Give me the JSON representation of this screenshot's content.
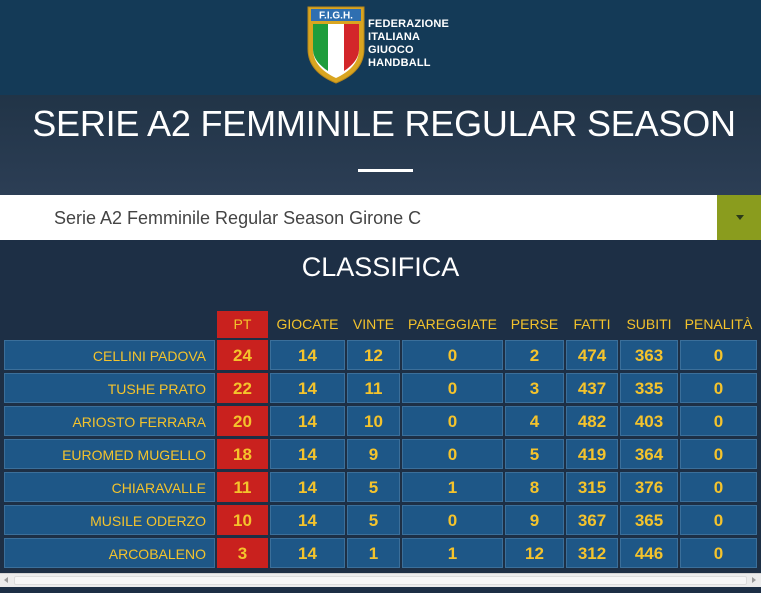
{
  "header": {
    "logo_abbr": "F.I.G.H.",
    "logo_lines": [
      "FEDERAZIONE",
      "ITALIANA",
      "GIUOCO",
      "HANDBALL"
    ]
  },
  "page_title": "SERIE A2 FEMMINILE REGULAR SEASON",
  "dropdown": {
    "selected": "Serie A2 Femminile Regular Season Girone C"
  },
  "section_title": "CLASSIFICA",
  "table": {
    "columns": [
      "PT",
      "GIOCATE",
      "VINTE",
      "PAREGGIATE",
      "PERSE",
      "FATTI",
      "SUBITI",
      "PENALITÀ"
    ],
    "rows": [
      {
        "team": "CELLINI PADOVA",
        "values": [
          "24",
          "14",
          "12",
          "0",
          "2",
          "474",
          "363",
          "0"
        ]
      },
      {
        "team": "TUSHE PRATO",
        "values": [
          "22",
          "14",
          "11",
          "0",
          "3",
          "437",
          "335",
          "0"
        ]
      },
      {
        "team": "ARIOSTO FERRARA",
        "values": [
          "20",
          "14",
          "10",
          "0",
          "4",
          "482",
          "403",
          "0"
        ]
      },
      {
        "team": "EUROMED MUGELLO",
        "values": [
          "18",
          "14",
          "9",
          "0",
          "5",
          "419",
          "364",
          "0"
        ]
      },
      {
        "team": "CHIARAVALLE",
        "values": [
          "11",
          "14",
          "5",
          "1",
          "8",
          "315",
          "376",
          "0"
        ]
      },
      {
        "team": "MUSILE ODERZO",
        "values": [
          "10",
          "14",
          "5",
          "0",
          "9",
          "367",
          "365",
          "0"
        ]
      },
      {
        "team": "ARCOBALENO",
        "values": [
          "3",
          "14",
          "1",
          "1",
          "12",
          "312",
          "446",
          "0"
        ]
      }
    ]
  },
  "colors": {
    "header_bg": "#143a57",
    "row_bg": "#1e5787",
    "pt_red": "#c9211e",
    "accent_yellow": "#f4c32c",
    "dropdown_button": "#8a9c1e"
  }
}
